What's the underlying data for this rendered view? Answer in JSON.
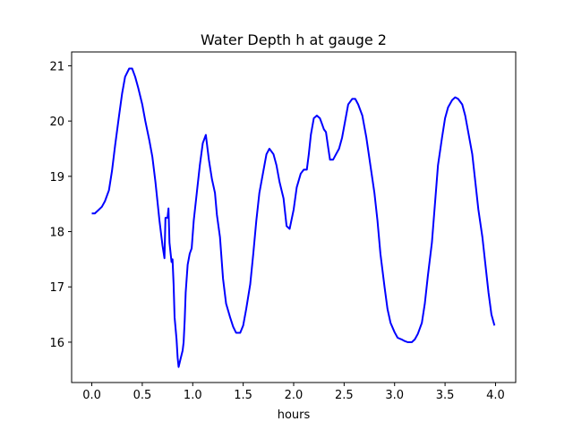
{
  "chart_data": {
    "type": "line",
    "title": "Water Depth h at gauge 2",
    "xlabel": "hours",
    "ylabel": "",
    "xlim": [
      -0.2,
      4.2
    ],
    "ylim": [
      15.27,
      21.25
    ],
    "xticks": [
      0.0,
      0.5,
      1.0,
      1.5,
      2.0,
      2.5,
      3.0,
      3.5,
      4.0
    ],
    "xtick_labels": [
      "0.0",
      "0.5",
      "1.0",
      "1.5",
      "2.0",
      "2.5",
      "3.0",
      "3.5",
      "4.0"
    ],
    "yticks": [
      16,
      17,
      18,
      19,
      20,
      21
    ],
    "ytick_labels": [
      "16",
      "17",
      "18",
      "19",
      "20",
      "21"
    ],
    "grid": false,
    "series": [
      {
        "color": "#0000ff",
        "x": [
          0.0,
          0.03,
          0.06,
          0.1,
          0.13,
          0.17,
          0.2,
          0.23,
          0.27,
          0.3,
          0.33,
          0.37,
          0.4,
          0.43,
          0.46,
          0.5,
          0.53,
          0.57,
          0.6,
          0.63,
          0.67,
          0.7,
          0.72,
          0.73,
          0.75,
          0.76,
          0.77,
          0.79,
          0.8,
          0.81,
          0.82,
          0.83,
          0.84,
          0.85,
          0.86,
          0.88,
          0.9,
          0.91,
          0.92,
          0.93,
          0.95,
          0.97,
          0.99,
          1.01,
          1.04,
          1.07,
          1.1,
          1.13,
          1.16,
          1.19,
          1.22,
          1.24,
          1.27,
          1.3,
          1.33,
          1.37,
          1.4,
          1.43,
          1.47,
          1.5,
          1.53,
          1.57,
          1.6,
          1.63,
          1.66,
          1.7,
          1.73,
          1.76,
          1.8,
          1.83,
          1.86,
          1.9,
          1.93,
          1.96,
          2.0,
          2.03,
          2.07,
          2.1,
          2.13,
          2.15,
          2.17,
          2.2,
          2.23,
          2.26,
          2.28,
          2.3,
          2.32,
          2.34,
          2.36,
          2.39,
          2.42,
          2.45,
          2.48,
          2.51,
          2.54,
          2.58,
          2.61,
          2.64,
          2.68,
          2.72,
          2.76,
          2.8,
          2.83,
          2.86,
          2.9,
          2.93,
          2.96,
          3.0,
          3.03,
          3.07,
          3.1,
          3.13,
          3.17,
          3.2,
          3.23,
          3.27,
          3.3,
          3.33,
          3.37,
          3.4,
          3.43,
          3.47,
          3.5,
          3.53,
          3.57,
          3.6,
          3.63,
          3.67,
          3.7,
          3.73,
          3.77,
          3.8,
          3.83,
          3.87,
          3.9,
          3.93,
          3.96,
          3.99
        ],
        "y": [
          18.33,
          18.33,
          18.38,
          18.45,
          18.55,
          18.75,
          19.1,
          19.55,
          20.1,
          20.5,
          20.8,
          20.95,
          20.95,
          20.8,
          20.6,
          20.3,
          20.0,
          19.65,
          19.35,
          18.9,
          18.2,
          17.75,
          17.52,
          18.25,
          18.25,
          18.42,
          17.8,
          17.45,
          17.5,
          17.05,
          16.45,
          16.25,
          16.05,
          15.72,
          15.55,
          15.7,
          15.85,
          16.0,
          16.4,
          16.9,
          17.4,
          17.6,
          17.7,
          18.2,
          18.7,
          19.2,
          19.6,
          19.75,
          19.3,
          18.95,
          18.7,
          18.3,
          17.9,
          17.15,
          16.7,
          16.45,
          16.28,
          16.17,
          16.17,
          16.3,
          16.6,
          17.05,
          17.6,
          18.2,
          18.7,
          19.1,
          19.4,
          19.5,
          19.4,
          19.2,
          18.9,
          18.6,
          18.1,
          18.05,
          18.4,
          18.8,
          19.05,
          19.12,
          19.12,
          19.4,
          19.75,
          20.05,
          20.1,
          20.05,
          19.95,
          19.85,
          19.8,
          19.55,
          19.3,
          19.3,
          19.4,
          19.5,
          19.7,
          20.0,
          20.3,
          20.4,
          20.4,
          20.3,
          20.1,
          19.7,
          19.2,
          18.7,
          18.2,
          17.6,
          17.0,
          16.6,
          16.35,
          16.18,
          16.08,
          16.05,
          16.02,
          16.0,
          16.0,
          16.05,
          16.15,
          16.35,
          16.7,
          17.2,
          17.8,
          18.5,
          19.2,
          19.7,
          20.05,
          20.25,
          20.38,
          20.43,
          20.4,
          20.3,
          20.1,
          19.8,
          19.4,
          18.9,
          18.4,
          17.9,
          17.4,
          16.9,
          16.5,
          16.3
        ]
      }
    ]
  }
}
